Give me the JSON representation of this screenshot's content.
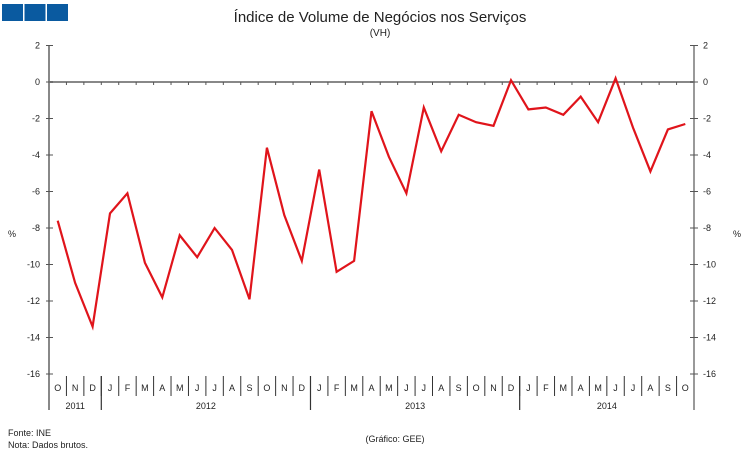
{
  "logo": {
    "color": "#0a5aa0",
    "blocks": 3
  },
  "chart_data": {
    "type": "line",
    "title": "Índice de Volume de Negócios nos Serviços",
    "subtitle": "(VH)",
    "ylabel": "%",
    "ylim": [
      -16,
      2
    ],
    "yticks": [
      2,
      0,
      -2,
      -4,
      -6,
      -8,
      -10,
      -12,
      -14,
      -16
    ],
    "grid": false,
    "legend": "none",
    "month_labels": [
      "O",
      "N",
      "D",
      "J",
      "F",
      "M",
      "A",
      "M",
      "J",
      "J",
      "A",
      "S",
      "O",
      "N",
      "D",
      "J",
      "F",
      "M",
      "A",
      "M",
      "J",
      "J",
      "A",
      "S",
      "O",
      "N",
      "D",
      "J",
      "F",
      "M",
      "A",
      "M",
      "J",
      "J",
      "A",
      "S",
      "O"
    ],
    "years": [
      {
        "label": "2011",
        "months": 3
      },
      {
        "label": "2012",
        "months": 12
      },
      {
        "label": "2013",
        "months": 12
      },
      {
        "label": "2014",
        "months": 10
      }
    ],
    "series": [
      {
        "color": "#e0141b",
        "values": [
          -7.6,
          -11.0,
          -13.4,
          -7.2,
          -6.1,
          -9.9,
          -11.8,
          -8.4,
          -9.6,
          -8.0,
          -9.2,
          -11.9,
          -3.6,
          -7.3,
          -9.8,
          -4.8,
          -10.4,
          -9.8,
          -1.6,
          -4.1,
          -6.1,
          -1.4,
          -3.8,
          -1.8,
          -2.2,
          -2.4,
          0.1,
          -1.5,
          -1.4,
          -1.8,
          -0.8,
          -2.2,
          0.2,
          -2.5,
          -4.9,
          -2.6,
          -2.3
        ]
      }
    ]
  },
  "footer": {
    "source": "Fonte: INE",
    "note": "Nota: Dados  brutos.",
    "credit": "(Gráfico:  GEE)"
  }
}
